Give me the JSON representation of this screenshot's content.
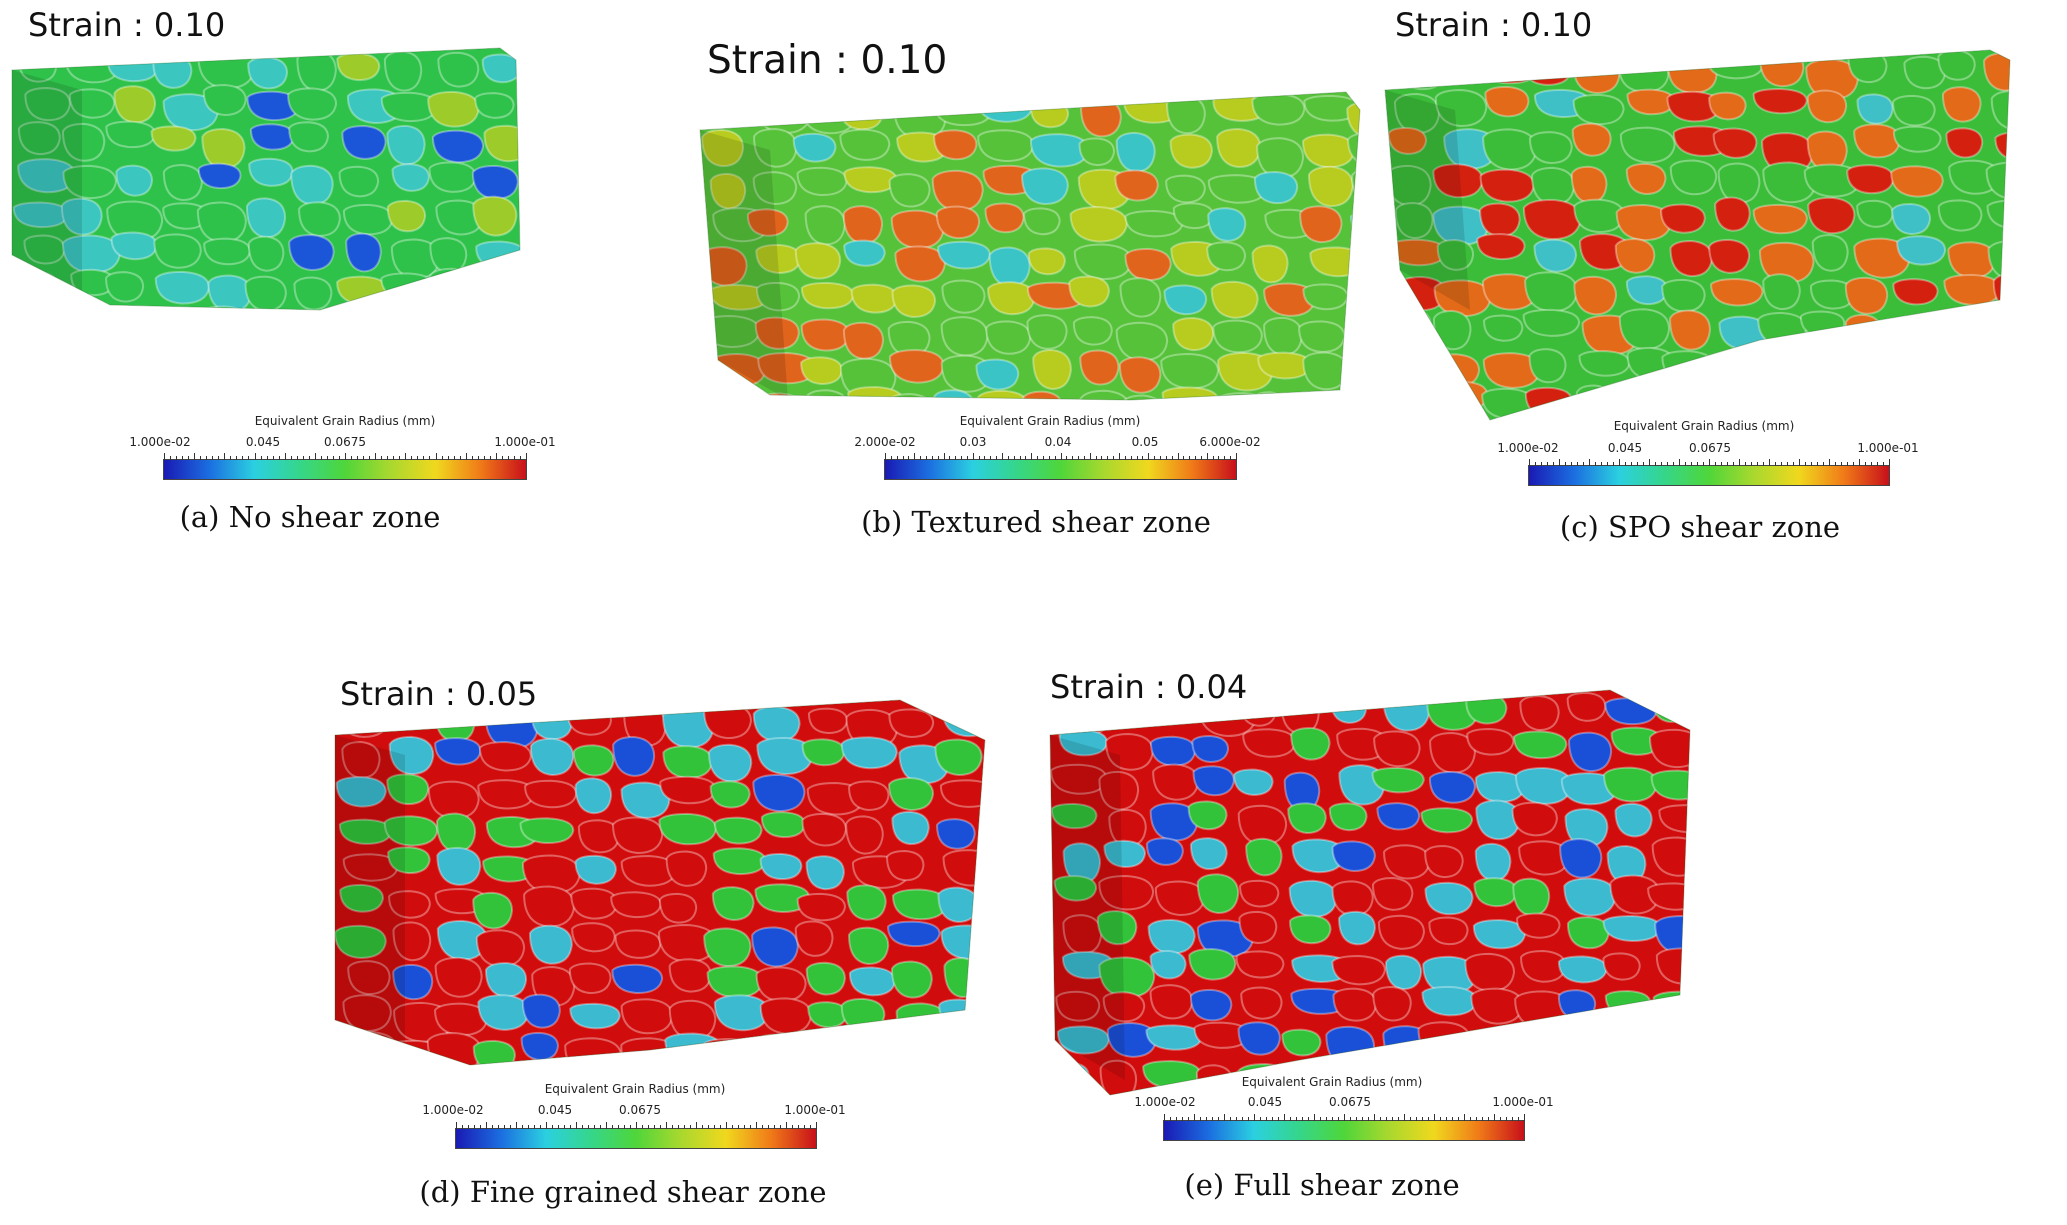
{
  "panels": [
    {
      "strain_label": "Strain : 0.10",
      "colorbar_title": "Equivalent Grain Radius (mm)",
      "colorbar_ticks": [
        "1.000e-02",
        "0.045",
        "0.0675",
        "1.000e-01"
      ],
      "caption": "(a) No shear zone",
      "dominant_colors": [
        "#2fc24a",
        "#3cc6c0",
        "#9dcc2a",
        "#1b55d8"
      ]
    },
    {
      "strain_label": "Strain : 0.10",
      "colorbar_title": "Equivalent Grain Radius (mm)",
      "colorbar_ticks": [
        "2.000e-02",
        "0.03",
        "0.04",
        "0.05",
        "6.000e-02"
      ],
      "caption": "(b) Textured shear zone",
      "dominant_colors": [
        "#56c23a",
        "#b7cc1e",
        "#e0641c",
        "#3bc4c6"
      ]
    },
    {
      "strain_label": "Strain : 0.10",
      "colorbar_title": "Equivalent Grain Radius (mm)",
      "colorbar_ticks": [
        "1.000e-02",
        "0.045",
        "0.0675",
        "1.000e-01"
      ],
      "caption": "(c) SPO shear zone",
      "dominant_colors": [
        "#3cbd3a",
        "#e26a18",
        "#d4210f",
        "#3fc0c6"
      ]
    },
    {
      "strain_label": "Strain : 0.05",
      "colorbar_title": "Equivalent Grain Radius (mm)",
      "colorbar_ticks": [
        "1.000e-02",
        "0.045",
        "0.0675",
        "1.000e-01"
      ],
      "caption": "(d) Fine grained shear zone",
      "dominant_colors": [
        "#d10c0c",
        "#33c33a",
        "#3bbad0",
        "#1a4fd8"
      ]
    },
    {
      "strain_label": "Strain : 0.04",
      "colorbar_title": "Equivalent Grain Radius (mm)",
      "colorbar_ticks": [
        "1.000e-02",
        "0.045",
        "0.0675",
        "1.000e-01"
      ],
      "caption": "(e) Full shear zone",
      "dominant_colors": [
        "#d10c0c",
        "#3bbad0",
        "#33c33a",
        "#1a4fd8"
      ]
    }
  ],
  "colormap": [
    "#1a1ab4",
    "#1b6ee0",
    "#2bd0e0",
    "#35d68a",
    "#4fd63a",
    "#a9d82e",
    "#f0d81e",
    "#f07a18",
    "#c8101a"
  ]
}
